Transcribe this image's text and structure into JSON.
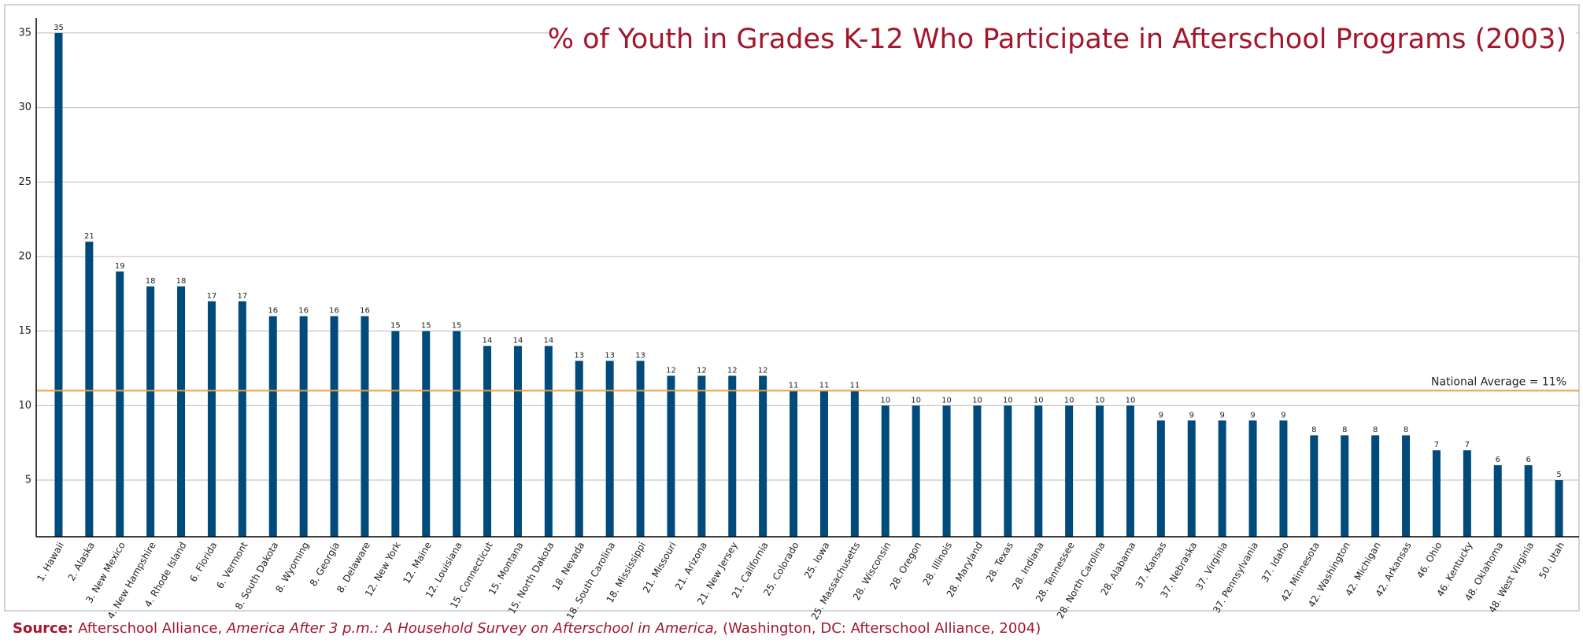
{
  "chart_data": {
    "type": "bar",
    "title": "% of Youth in Grades K-12 Who Participate in Afterschool Programs (2003)",
    "categories": [
      "1. Hawaii",
      "2. Alaska",
      "3. New Mexico",
      "4. New Hampshire",
      "4. Rhode Island",
      "6. Florida",
      "6. Vermont",
      "8. South Dakota",
      "8. Wyoming",
      "8. Georgia",
      "8. Delaware",
      "12. New York",
      "12. Maine",
      "12. Louisiana",
      "15. Connecticut",
      "15. Montana",
      "15. North Dakota",
      "18. Nevada",
      "18. South Carolina",
      "18. Mississippi",
      "21. Missouri",
      "21. Arizona",
      "21. New Jersey",
      "21. California",
      "25. Colorado",
      "25. Iowa",
      "25. Massachusetts",
      "28. Wisconsin",
      "28. Oregon",
      "28. Illinois",
      "28. Maryland",
      "28. Texas",
      "28. Indiana",
      "28. Tennessee",
      "28. North Carolina",
      "28. Alabama",
      "37. Kansas",
      "37. Nebraska",
      "37. Virginia",
      "37. Pennsylvania",
      "37. Idaho",
      "42. Minnesota",
      "42. Washington",
      "42. Michigan",
      "42. Arkansas",
      "46. Ohio",
      "46. Kentucky",
      "48. Oklahoma",
      "48. West Virginia",
      "50. Utah"
    ],
    "values": [
      35,
      21,
      19,
      18,
      18,
      17,
      17,
      16,
      16,
      16,
      16,
      15,
      15,
      15,
      14,
      14,
      14,
      13,
      13,
      13,
      12,
      12,
      12,
      12,
      11,
      11,
      11,
      10,
      10,
      10,
      10,
      10,
      10,
      10,
      10,
      10,
      9,
      9,
      9,
      9,
      9,
      8,
      8,
      8,
      8,
      7,
      7,
      6,
      6,
      5
    ],
    "color": "#004a7c",
    "ylim": [
      1.2,
      36
    ],
    "yticks": [
      5,
      10,
      15,
      20,
      25,
      30,
      35
    ],
    "grid": true,
    "reference_line": {
      "value": 11,
      "label": "National Average = 11%",
      "color": "#e8a33c"
    },
    "source": {
      "label": "Source:",
      "text1": "Afterschool Alliance, ",
      "italic": "America After 3 p.m.: A Household Survey on Afterschool in America,",
      "text2": " (Washington, DC: Afterschool Alliance, 2004)"
    }
  }
}
